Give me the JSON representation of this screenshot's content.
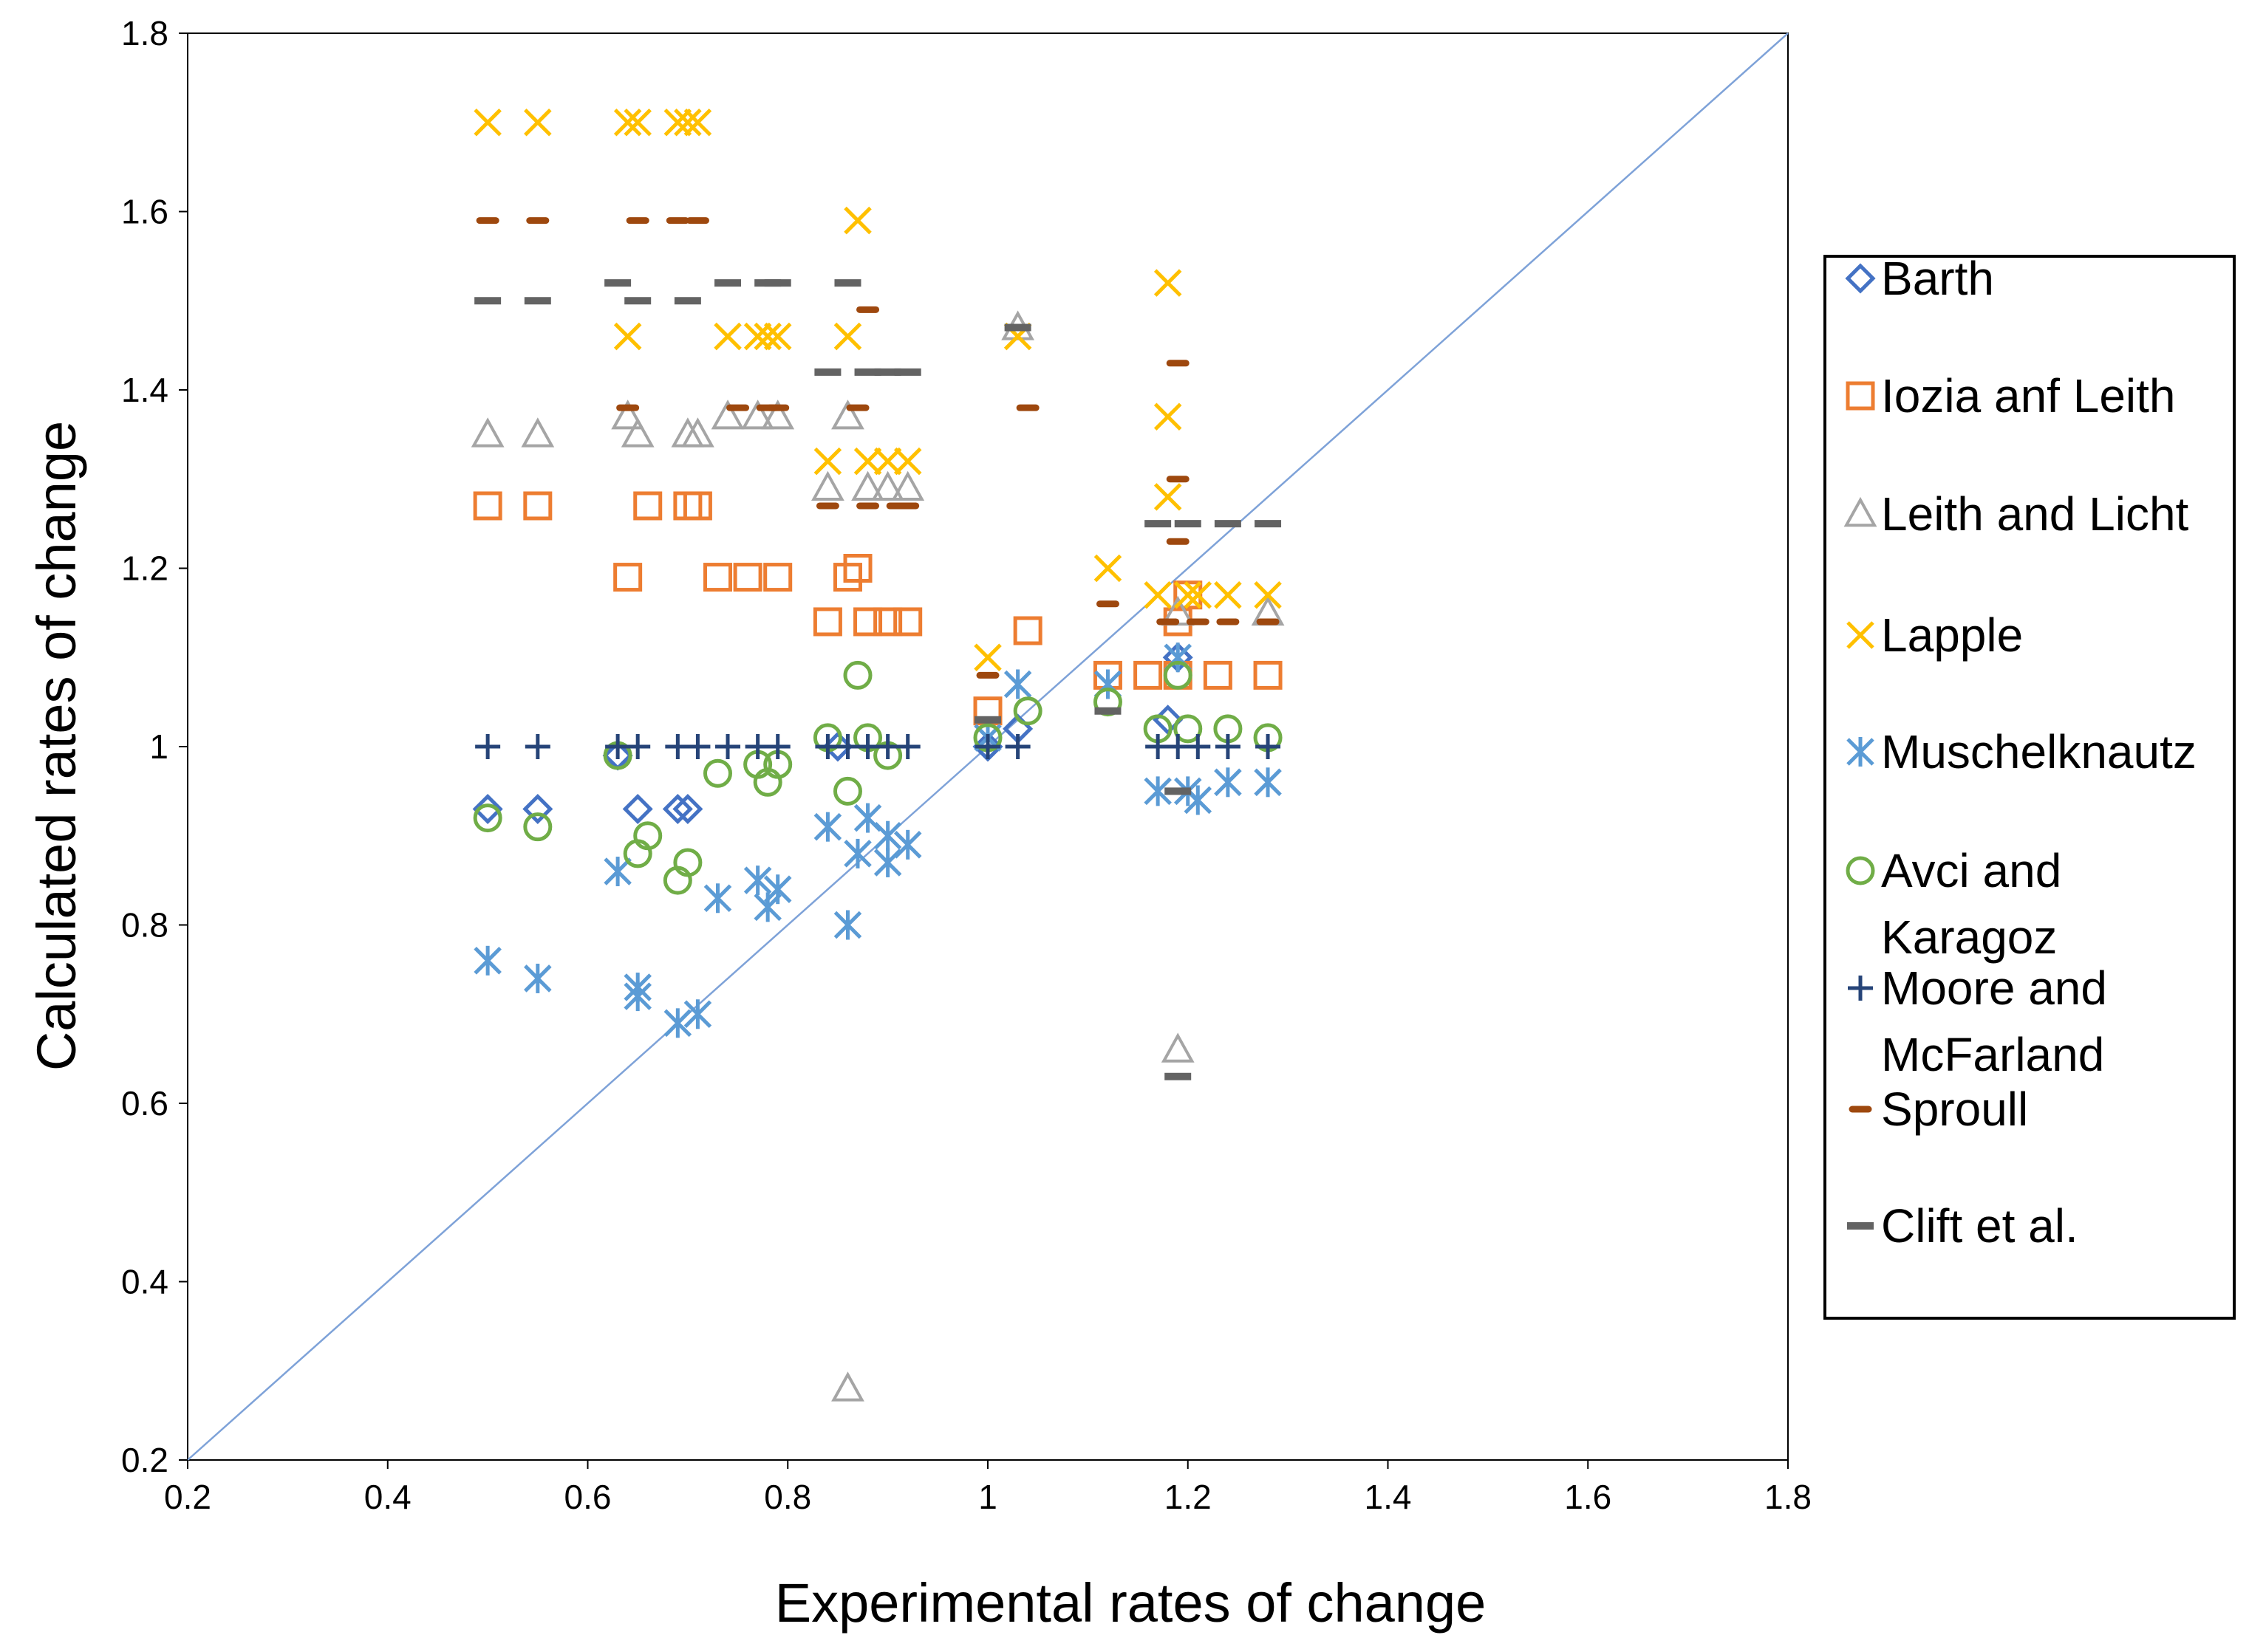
{
  "chart_data": {
    "type": "scatter",
    "title": "",
    "xlabel": "Experimental rates of change",
    "ylabel": "Calculated rates of change",
    "xlim": [
      0.2,
      1.8
    ],
    "ylim": [
      0.2,
      1.8
    ],
    "xticks": [
      0.2,
      0.4,
      0.6,
      0.8,
      1.0,
      1.2,
      1.4,
      1.6,
      1.8
    ],
    "yticks": [
      0.2,
      0.4,
      0.6,
      0.8,
      1.0,
      1.2,
      1.4,
      1.6,
      1.8
    ],
    "xtick_labels": [
      "0.2",
      "0.4",
      "0.6",
      "0.8",
      "1",
      "1.2",
      "1.4",
      "1.6",
      "1.8"
    ],
    "ytick_labels": [
      "0.2",
      "0.4",
      "0.6",
      "0.8",
      "1",
      "1.2",
      "1.4",
      "1.6",
      "1.8"
    ],
    "grid": false,
    "legend_position": "right",
    "reference_line": {
      "name": "y = x",
      "from": [
        0.2,
        0.2
      ],
      "to": [
        1.8,
        1.8
      ],
      "color": "#7ea2d8"
    },
    "series": [
      {
        "name": "Barth",
        "legend_lines": [
          "Barth"
        ],
        "marker": "diamond",
        "color": "#4472c4",
        "points": [
          [
            0.5,
            0.93
          ],
          [
            0.55,
            0.93
          ],
          [
            0.63,
            0.99
          ],
          [
            0.65,
            0.93
          ],
          [
            0.69,
            0.93
          ],
          [
            0.7,
            0.93
          ],
          [
            0.85,
            1.0
          ],
          [
            1.0,
            1.0
          ],
          [
            1.03,
            1.02
          ],
          [
            1.18,
            1.03
          ],
          [
            1.19,
            1.1
          ]
        ]
      },
      {
        "name": "Iozia anf Leith",
        "legend_lines": [
          "Iozia anf Leith"
        ],
        "marker": "square",
        "color": "#ed7d31",
        "points": [
          [
            0.5,
            1.27
          ],
          [
            0.55,
            1.27
          ],
          [
            0.64,
            1.19
          ],
          [
            0.66,
            1.27
          ],
          [
            0.7,
            1.27
          ],
          [
            0.71,
            1.27
          ],
          [
            0.73,
            1.19
          ],
          [
            0.76,
            1.19
          ],
          [
            0.79,
            1.19
          ],
          [
            0.84,
            1.14
          ],
          [
            0.86,
            1.19
          ],
          [
            0.87,
            1.2
          ],
          [
            0.88,
            1.14
          ],
          [
            0.9,
            1.14
          ],
          [
            0.92,
            1.14
          ],
          [
            1.0,
            1.04
          ],
          [
            1.04,
            1.13
          ],
          [
            1.12,
            1.08
          ],
          [
            1.16,
            1.08
          ],
          [
            1.19,
            1.14
          ],
          [
            1.19,
            1.08
          ],
          [
            1.2,
            1.17
          ],
          [
            1.23,
            1.08
          ],
          [
            1.28,
            1.08
          ]
        ]
      },
      {
        "name": "Leith and Licht",
        "legend_lines": [
          "Leith and Licht"
        ],
        "marker": "triangle",
        "color": "#a5a5a5",
        "points": [
          [
            0.5,
            1.35
          ],
          [
            0.55,
            1.35
          ],
          [
            0.64,
            1.37
          ],
          [
            0.65,
            1.35
          ],
          [
            0.7,
            1.35
          ],
          [
            0.71,
            1.35
          ],
          [
            0.74,
            1.37
          ],
          [
            0.77,
            1.37
          ],
          [
            0.79,
            1.37
          ],
          [
            0.84,
            1.29
          ],
          [
            0.86,
            1.37
          ],
          [
            0.88,
            1.29
          ],
          [
            0.9,
            1.29
          ],
          [
            0.92,
            1.29
          ],
          [
            0.86,
            0.28
          ],
          [
            1.03,
            1.47
          ],
          [
            1.19,
            0.66
          ],
          [
            1.19,
            1.15
          ],
          [
            1.28,
            1.15
          ]
        ]
      },
      {
        "name": "Lapple",
        "legend_lines": [
          "Lapple"
        ],
        "marker": "x",
        "color": "#ffc000",
        "points": [
          [
            0.5,
            1.7
          ],
          [
            0.55,
            1.7
          ],
          [
            0.64,
            1.7
          ],
          [
            0.65,
            1.7
          ],
          [
            0.69,
            1.7
          ],
          [
            0.7,
            1.7
          ],
          [
            0.71,
            1.7
          ],
          [
            0.64,
            1.46
          ],
          [
            0.74,
            1.46
          ],
          [
            0.77,
            1.46
          ],
          [
            0.78,
            1.46
          ],
          [
            0.79,
            1.46
          ],
          [
            0.86,
            1.46
          ],
          [
            0.87,
            1.59
          ],
          [
            0.84,
            1.32
          ],
          [
            0.88,
            1.32
          ],
          [
            0.9,
            1.32
          ],
          [
            0.92,
            1.32
          ],
          [
            1.0,
            1.1
          ],
          [
            1.03,
            1.46
          ],
          [
            1.12,
            1.2
          ],
          [
            1.18,
            1.52
          ],
          [
            1.18,
            1.37
          ],
          [
            1.18,
            1.28
          ],
          [
            1.17,
            1.17
          ],
          [
            1.2,
            1.17
          ],
          [
            1.21,
            1.17
          ],
          [
            1.24,
            1.17
          ],
          [
            1.28,
            1.17
          ]
        ]
      },
      {
        "name": "Muschelknautz",
        "legend_lines": [
          "Muschelknautz"
        ],
        "marker": "asterisk",
        "color": "#5b9bd5",
        "points": [
          [
            0.5,
            0.76
          ],
          [
            0.55,
            0.74
          ],
          [
            0.63,
            0.86
          ],
          [
            0.65,
            0.72
          ],
          [
            0.65,
            0.73
          ],
          [
            0.69,
            0.69
          ],
          [
            0.71,
            0.7
          ],
          [
            0.73,
            0.83
          ],
          [
            0.77,
            0.85
          ],
          [
            0.78,
            0.82
          ],
          [
            0.79,
            0.84
          ],
          [
            0.84,
            0.91
          ],
          [
            0.86,
            0.8
          ],
          [
            0.87,
            0.88
          ],
          [
            0.88,
            0.92
          ],
          [
            0.9,
            0.87
          ],
          [
            0.9,
            0.9
          ],
          [
            0.92,
            0.89
          ],
          [
            1.0,
            1.01
          ],
          [
            1.03,
            1.07
          ],
          [
            1.12,
            1.07
          ],
          [
            1.17,
            0.95
          ],
          [
            1.19,
            1.1
          ],
          [
            1.2,
            0.95
          ],
          [
            1.21,
            0.94
          ],
          [
            1.24,
            0.96
          ],
          [
            1.28,
            0.96
          ]
        ]
      },
      {
        "name": "Avci and Karagoz",
        "legend_lines": [
          "Avci and",
          "Karagoz"
        ],
        "marker": "circle",
        "color": "#70ad47",
        "points": [
          [
            0.5,
            0.92
          ],
          [
            0.55,
            0.91
          ],
          [
            0.63,
            0.99
          ],
          [
            0.65,
            0.88
          ],
          [
            0.66,
            0.9
          ],
          [
            0.69,
            0.85
          ],
          [
            0.7,
            0.87
          ],
          [
            0.73,
            0.97
          ],
          [
            0.77,
            0.98
          ],
          [
            0.78,
            0.96
          ],
          [
            0.79,
            0.98
          ],
          [
            0.84,
            1.01
          ],
          [
            0.86,
            0.95
          ],
          [
            0.87,
            1.08
          ],
          [
            0.88,
            1.01
          ],
          [
            0.9,
            0.99
          ],
          [
            1.0,
            1.01
          ],
          [
            1.04,
            1.04
          ],
          [
            1.12,
            1.05
          ],
          [
            1.17,
            1.02
          ],
          [
            1.19,
            1.08
          ],
          [
            1.2,
            1.02
          ],
          [
            1.24,
            1.02
          ],
          [
            1.28,
            1.01
          ]
        ]
      },
      {
        "name": "Moore and McFarland",
        "legend_lines": [
          "Moore and",
          "McFarland"
        ],
        "marker": "plus",
        "color": "#264478",
        "points": [
          [
            0.5,
            1.0
          ],
          [
            0.55,
            1.0
          ],
          [
            0.63,
            1.0
          ],
          [
            0.65,
            1.0
          ],
          [
            0.69,
            1.0
          ],
          [
            0.71,
            1.0
          ],
          [
            0.74,
            1.0
          ],
          [
            0.77,
            1.0
          ],
          [
            0.79,
            1.0
          ],
          [
            0.84,
            1.0
          ],
          [
            0.86,
            1.0
          ],
          [
            0.88,
            1.0
          ],
          [
            0.9,
            1.0
          ],
          [
            0.92,
            1.0
          ],
          [
            1.0,
            1.0
          ],
          [
            1.03,
            1.0
          ],
          [
            1.17,
            1.0
          ],
          [
            1.19,
            1.0
          ],
          [
            1.21,
            1.0
          ],
          [
            1.24,
            1.0
          ],
          [
            1.28,
            1.0
          ]
        ]
      },
      {
        "name": "Sproull",
        "legend_lines": [
          "Sproull"
        ],
        "marker": "dash",
        "color": "#9e480e",
        "points": [
          [
            0.5,
            1.59
          ],
          [
            0.55,
            1.59
          ],
          [
            0.64,
            1.38
          ],
          [
            0.65,
            1.59
          ],
          [
            0.69,
            1.59
          ],
          [
            0.71,
            1.59
          ],
          [
            0.75,
            1.38
          ],
          [
            0.78,
            1.38
          ],
          [
            0.79,
            1.38
          ],
          [
            0.84,
            1.27
          ],
          [
            0.87,
            1.38
          ],
          [
            0.88,
            1.49
          ],
          [
            0.88,
            1.27
          ],
          [
            0.91,
            1.27
          ],
          [
            0.92,
            1.27
          ],
          [
            1.0,
            1.08
          ],
          [
            1.04,
            1.38
          ],
          [
            1.12,
            1.16
          ],
          [
            1.19,
            1.43
          ],
          [
            1.19,
            1.3
          ],
          [
            1.19,
            1.23
          ],
          [
            1.18,
            1.14
          ],
          [
            1.21,
            1.14
          ],
          [
            1.24,
            1.14
          ],
          [
            1.28,
            1.14
          ]
        ]
      },
      {
        "name": "Clift et al.",
        "legend_lines": [
          "Clift et al."
        ],
        "marker": "long-dash",
        "color": "#636363",
        "points": [
          [
            0.5,
            1.5
          ],
          [
            0.55,
            1.5
          ],
          [
            0.63,
            1.52
          ],
          [
            0.65,
            1.5
          ],
          [
            0.7,
            1.5
          ],
          [
            0.74,
            1.52
          ],
          [
            0.78,
            1.52
          ],
          [
            0.79,
            1.52
          ],
          [
            0.84,
            1.42
          ],
          [
            0.86,
            1.52
          ],
          [
            0.88,
            1.42
          ],
          [
            0.9,
            1.42
          ],
          [
            0.92,
            1.42
          ],
          [
            1.0,
            1.03
          ],
          [
            1.03,
            1.47
          ],
          [
            1.12,
            1.04
          ],
          [
            1.17,
            1.25
          ],
          [
            1.2,
            1.25
          ],
          [
            1.24,
            1.25
          ],
          [
            1.28,
            1.25
          ],
          [
            1.19,
            0.95
          ],
          [
            1.19,
            0.63
          ]
        ]
      }
    ]
  }
}
